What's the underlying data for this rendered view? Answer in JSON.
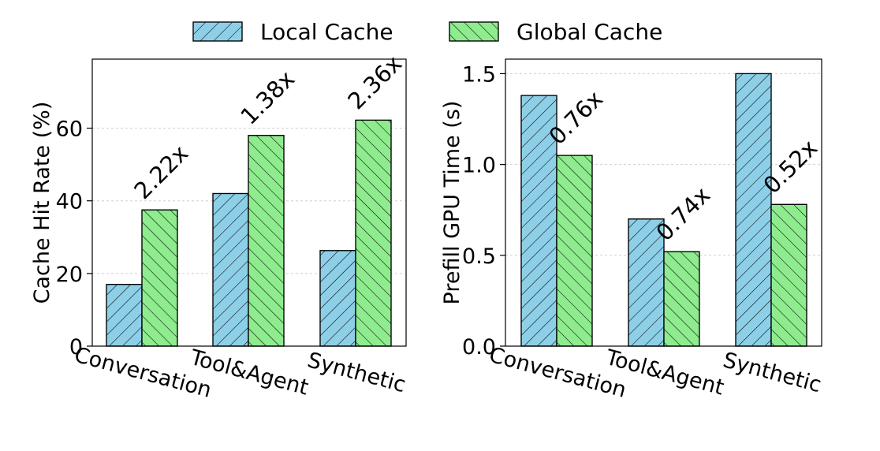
{
  "legend": [
    {
      "label": "Local Cache",
      "color": "#8ecfe8",
      "hatch": "fwd"
    },
    {
      "label": "Global Cache",
      "color": "#8eec8e",
      "hatch": "back"
    }
  ],
  "chart_data": [
    {
      "type": "bar",
      "ylabel": "Cache Hit Rate (%)",
      "ylim": [
        0,
        79
      ],
      "yticks": [
        0,
        20,
        40,
        60
      ],
      "grid": true,
      "categories": [
        "Conversation",
        "Tool&Agent",
        "Synthetic"
      ],
      "series": [
        {
          "name": "Local Cache",
          "values": [
            17,
            42,
            26.3
          ]
        },
        {
          "name": "Global Cache",
          "values": [
            37.5,
            58,
            62.2
          ]
        }
      ],
      "annotations": [
        "2.22x",
        "1.38x",
        "2.36x"
      ]
    },
    {
      "type": "bar",
      "ylabel": "Prefill GPU Time (s)",
      "ylim": [
        0,
        1.58
      ],
      "yticks": [
        "0.0",
        "0.5",
        "1.0",
        "1.5"
      ],
      "grid": true,
      "categories": [
        "Conversation",
        "Tool&Agent",
        "Synthetic"
      ],
      "series": [
        {
          "name": "Local Cache",
          "values": [
            1.38,
            0.7,
            1.5
          ]
        },
        {
          "name": "Global Cache",
          "values": [
            1.05,
            0.52,
            0.78
          ]
        }
      ],
      "annotations": [
        "0.76x",
        "0.74x",
        "0.52x"
      ]
    }
  ]
}
